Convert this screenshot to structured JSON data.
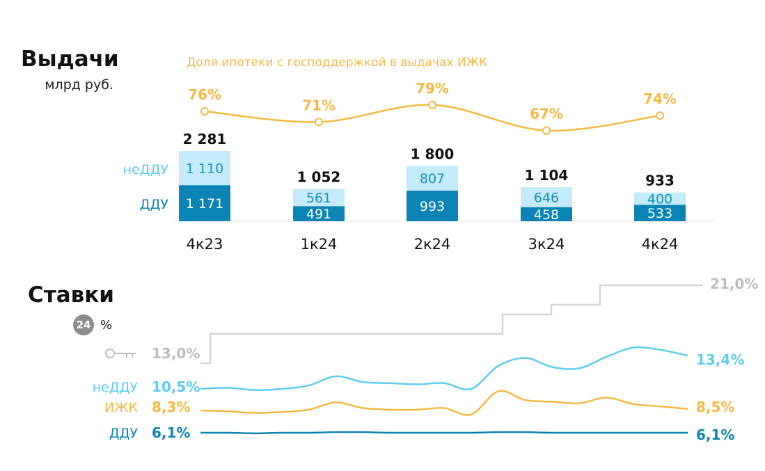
{
  "issuance": {
    "title": "Выдачи",
    "unit": "млрд руб.",
    "share_title": "Доля ипотеки с господдержкой в выдачах ИЖК",
    "legend": {
      "nonddu": "неДДУ",
      "ddu": "ДДУ"
    }
  },
  "rates": {
    "title": "Ставки",
    "badge": "24",
    "badge_unit": "%",
    "key_rate_icon": "key-icon",
    "start_key_rate_label": "13,0%",
    "end_key_rate_label": "21,0%",
    "legend": {
      "nonddu": "неДДУ",
      "izhk": "ИЖК",
      "ddu": "ДДУ"
    },
    "start_labels": {
      "nonddu": "10,5%",
      "izhk": "8,3%",
      "ddu": "6,1%"
    },
    "end_labels": {
      "nonddu": "13,4%",
      "izhk": "8,5%",
      "ddu": "6,1%"
    }
  },
  "colors": {
    "ddu": "#0a84b4",
    "nonddu": "#c3ebfa",
    "nonddu_text": "#1a8fbf",
    "nonddu_line": "#5ccdf0",
    "gov_share": "#f5b942",
    "key_rate": "#d5d5d5",
    "key_rate_text": "#bdbdbd",
    "badge": "#8c8c8c"
  },
  "chart_data": [
    {
      "type": "bar",
      "title": "Выдачи",
      "unit": "млрд руб.",
      "stacked": true,
      "categories": [
        "4к23",
        "1к24",
        "2к24",
        "3к24",
        "4к24"
      ],
      "series": [
        {
          "name": "ДДУ",
          "values": [
            1171,
            491,
            993,
            458,
            533
          ],
          "labels": [
            "1 171",
            "491",
            "993",
            "458",
            "533"
          ]
        },
        {
          "name": "неДДУ",
          "values": [
            1110,
            561,
            807,
            646,
            400
          ],
          "labels": [
            "1 110",
            "561",
            "807",
            "646",
            "400"
          ]
        }
      ],
      "totals": [
        2281,
        1052,
        1800,
        1104,
        933
      ],
      "total_labels": [
        "2 281",
        "1 052",
        "1 800",
        "1 104",
        "933"
      ]
    },
    {
      "type": "line",
      "title": "Доля ипотеки с господдержкой в выдачах ИЖК",
      "categories": [
        "4к23",
        "1к24",
        "2к24",
        "3к24",
        "4к24"
      ],
      "values": [
        76,
        71,
        79,
        67,
        74
      ],
      "labels": [
        "76%",
        "71%",
        "79%",
        "67%",
        "74%"
      ]
    },
    {
      "type": "line",
      "title": "Ставки",
      "unit": "%",
      "x_range": [
        "4к23",
        "4к24"
      ],
      "series": [
        {
          "name": "ключевая ставка",
          "step": true,
          "values": [
            13.0,
            13.0,
            16.0,
            16.0,
            16.0,
            16.0,
            16.0,
            16.0,
            16.0,
            16.0,
            16.0,
            16.0,
            16.0,
            16.0,
            16.0,
            16.0,
            16.0,
            16.0,
            16.0,
            16.0,
            16.0,
            16.0,
            16.0,
            16.0,
            16.0,
            16.0,
            16.0,
            16.0,
            16.0,
            16.0,
            16.0,
            16.0,
            16.0,
            16.0,
            16.0,
            16.0,
            16.0,
            16.0,
            16.0,
            16.0,
            16.0,
            16.0,
            16.0,
            16.0,
            16.0,
            16.0,
            16.0,
            16.0,
            16.0,
            16.0,
            16.0,
            16.0,
            16.0,
            16.0,
            16.0,
            16.0,
            16.0,
            16.0,
            16.0,
            16.0,
            16.0,
            16.0,
            18.0,
            18.0,
            18.0,
            18.0,
            18.0,
            18.0,
            18.0,
            18.0,
            18.0,
            18.0,
            19.0,
            19.0,
            19.0,
            19.0,
            19.0,
            19.0,
            19.0,
            19.0,
            19.0,
            19.0,
            21.0,
            21.0,
            21.0,
            21.0,
            21.0,
            21.0,
            21.0,
            21.0,
            21.0,
            21.0,
            21.0,
            21.0,
            21.0,
            21.0,
            21.0,
            21.0,
            21.0,
            21.0,
            21.0
          ]
        },
        {
          "name": "неДДУ",
          "values": [
            10.5,
            10.6,
            10.4,
            10.5,
            10.8,
            11.6,
            11.1,
            11.0,
            10.9,
            11.0,
            10.5,
            12.5,
            13.2,
            12.4,
            12.3,
            13.3,
            14.1,
            13.9,
            13.4
          ]
        },
        {
          "name": "ИЖК",
          "values": [
            8.3,
            8.2,
            8.0,
            8.1,
            8.4,
            9.3,
            8.6,
            8.4,
            8.4,
            8.6,
            7.8,
            10.7,
            9.6,
            9.4,
            9.2,
            9.9,
            9.1,
            8.8,
            8.5
          ]
        },
        {
          "name": "ДДУ",
          "values": [
            6.1,
            6.1,
            6.0,
            6.1,
            6.1,
            6.2,
            6.2,
            6.1,
            6.1,
            6.1,
            6.1,
            6.2,
            6.2,
            6.1,
            6.1,
            6.1,
            6.1,
            6.1,
            6.1
          ]
        }
      ]
    }
  ]
}
